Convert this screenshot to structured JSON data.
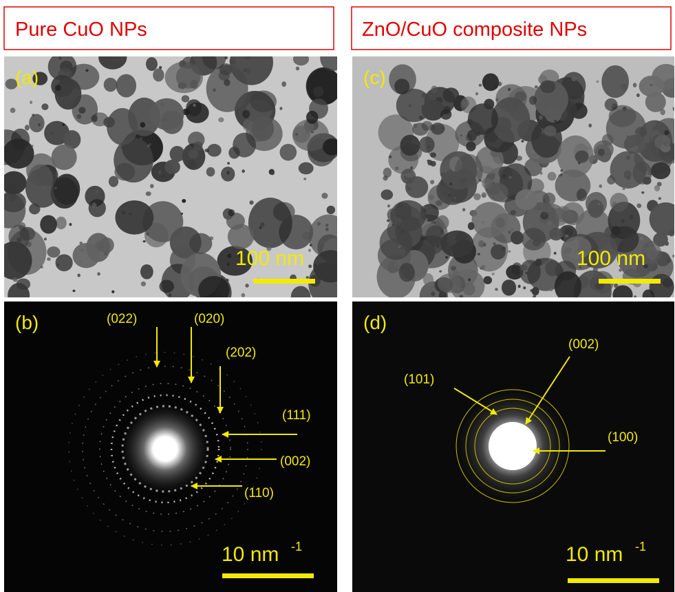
{
  "headers": [
    "Pure CuO NPs",
    "ZnO/CuO composite NPs"
  ],
  "panels": [
    {
      "label": "(a)",
      "scale_bar": {
        "text": "100 nm"
      }
    },
    {
      "label": "(b)",
      "scale_bar": {
        "text": "10  nm",
        "superscript": "-1"
      },
      "annotations": [
        "(022)",
        "(020)",
        "(202)",
        "(111)",
        "(002)",
        "(110)"
      ]
    },
    {
      "label": "(c)",
      "scale_bar": {
        "text": "100 nm"
      }
    },
    {
      "label": "(d)",
      "scale_bar": {
        "text": "10  nm",
        "superscript": "-1"
      },
      "annotations": [
        "(002)",
        "(101)",
        "(100)"
      ]
    }
  ]
}
